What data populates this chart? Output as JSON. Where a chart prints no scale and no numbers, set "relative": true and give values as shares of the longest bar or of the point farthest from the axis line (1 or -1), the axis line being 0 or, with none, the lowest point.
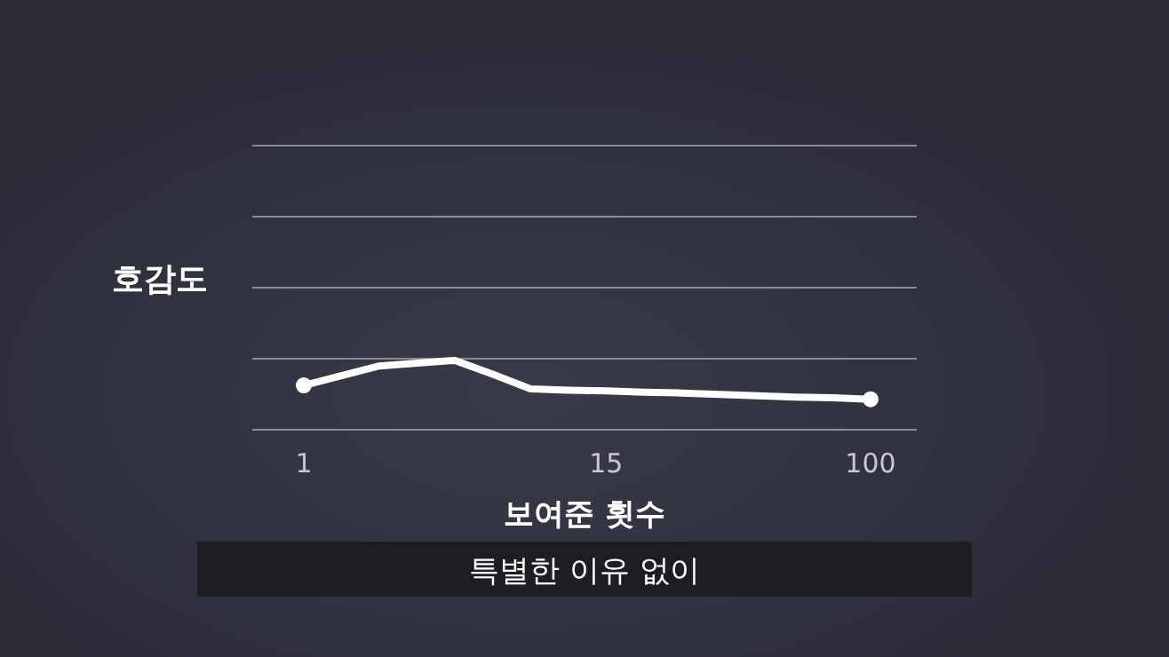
{
  "chart_data": {
    "type": "line",
    "relative": true,
    "ylabel": "호감도",
    "xlabel": "보여준 횟수",
    "categories": [
      "1",
      null,
      null,
      null,
      null,
      null,
      null,
      null,
      "15",
      null,
      null,
      null,
      null,
      null,
      null,
      "100"
    ],
    "series": [
      {
        "color": "#ffffff",
        "values": [
          0.64,
          0.78,
          0.92,
          0.96,
          1,
          0.8,
          0.59,
          0.57,
          0.56,
          0.54,
          0.53,
          0.51,
          0.49,
          0.47,
          0.46,
          0.44
        ]
      }
    ],
    "annotations": [
      "특별한 이유 없이"
    ]
  }
}
